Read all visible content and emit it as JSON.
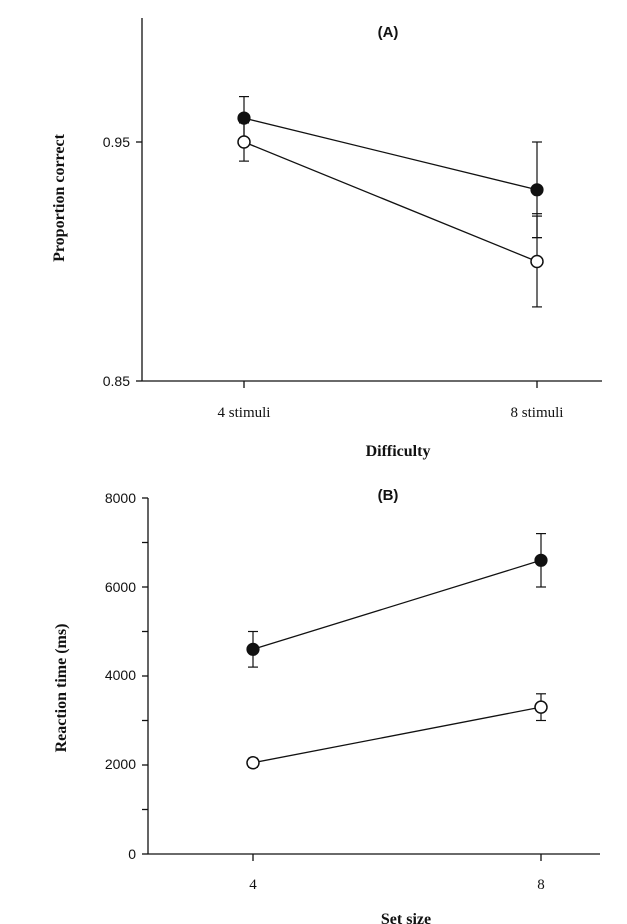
{
  "chart_data": [
    {
      "type": "line",
      "title": "(A)",
      "xlabel": "Difficulty",
      "ylabel": "Proportion correct",
      "categories": [
        "4 stimuli",
        "8 stimuli"
      ],
      "ylim": [
        0.85,
        1.0
      ],
      "yticks": [
        "0.95",
        "0.85"
      ],
      "grid": false,
      "series": [
        {
          "marker": "filled",
          "values": [
            0.96,
            0.93
          ],
          "err": [
            0.009,
            0.02
          ]
        },
        {
          "marker": "open",
          "values": [
            0.95,
            0.9
          ],
          "err": [
            0.008,
            0.019
          ]
        }
      ],
      "extra_ticks": [
        0.92,
        0.91
      ]
    },
    {
      "type": "line",
      "title": "(B)",
      "xlabel": "Set size",
      "ylabel": "Reaction time (ms)",
      "categories": [
        "4",
        "8"
      ],
      "ylim": [
        0,
        8000
      ],
      "yticks": [
        "8000",
        "6000",
        "4000",
        "2000",
        "0"
      ],
      "grid": false,
      "series": [
        {
          "marker": "filled",
          "values": [
            4600,
            6600
          ],
          "err": [
            400,
            600
          ]
        },
        {
          "marker": "open",
          "values": [
            2050,
            3300
          ],
          "err": [
            100,
            300
          ]
        }
      ]
    }
  ]
}
